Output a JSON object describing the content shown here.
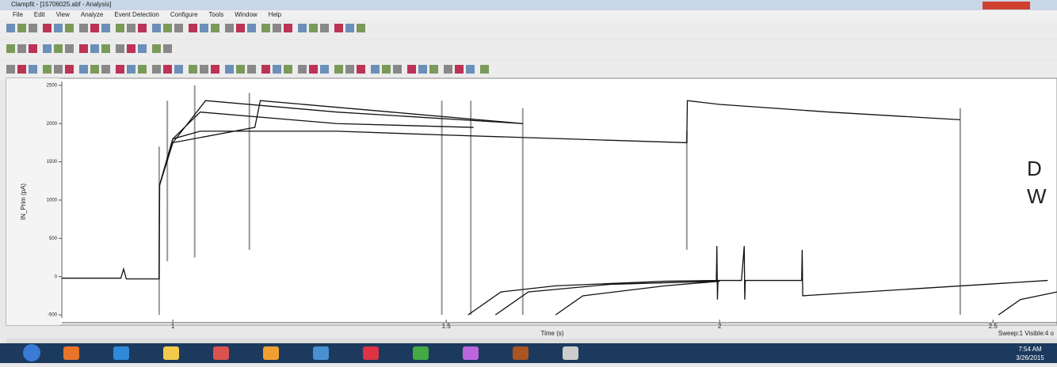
{
  "window": {
    "title": "Clampfit - [15706025.abf - Analysis]",
    "menu": [
      "File",
      "Edit",
      "View",
      "Analyze",
      "Event Detection",
      "Configure",
      "Tools",
      "Window",
      "Help"
    ]
  },
  "chart_data": {
    "type": "line",
    "y_label": "IN_Prim (pA)",
    "x_label": "Time (s)",
    "xlim": [
      0.797,
      2.617
    ],
    "ylim": [
      -540,
      2550
    ],
    "xticks": [
      1,
      1.5,
      2,
      2.5
    ],
    "yticks": [
      2500,
      2000,
      1500,
      1000,
      500,
      0,
      -500
    ],
    "color": "#111111",
    "series": [
      {
        "x": [
          0.797,
          0.905,
          0.91,
          0.915,
          0.975,
          0.976,
          1.0,
          1.05,
          1.3,
          1.5,
          1.94,
          1.941,
          2.0,
          2.2,
          2.44
        ],
        "values": [
          -20,
          -20,
          100,
          -30,
          -30,
          1200,
          1800,
          1900,
          1900,
          1850,
          1750,
          2300,
          2250,
          2150,
          2050
        ]
      },
      {
        "x": [
          0.976,
          1.0,
          1.05,
          1.3,
          1.55
        ],
        "values": [
          1200,
          1800,
          2150,
          2000,
          1950
        ]
      },
      {
        "x": [
          0.976,
          1.0,
          1.06,
          1.3,
          1.64
        ],
        "values": [
          1200,
          1750,
          2300,
          2150,
          2000
        ]
      },
      {
        "x": [
          0.976,
          1.0,
          1.15,
          1.16,
          1.4,
          1.64
        ],
        "values": [
          1200,
          1750,
          1950,
          2300,
          2150,
          2000
        ]
      },
      {
        "x": [
          1.54,
          1.6,
          1.7,
          1.9,
          1.994,
          1.995,
          1.996,
          1.997,
          2.04,
          2.045,
          2.046,
          2.047,
          2.15,
          2.151,
          2.152,
          2.6
        ],
        "values": [
          -500,
          -200,
          -120,
          -60,
          -50,
          400,
          -300,
          -50,
          -50,
          400,
          -300,
          -50,
          -50,
          350,
          -250,
          -50
        ]
      },
      {
        "x": [
          1.59,
          1.65,
          1.8,
          2.0
        ],
        "values": [
          -500,
          -200,
          -100,
          -60
        ]
      },
      {
        "x": [
          1.7,
          1.75,
          1.9,
          2.0
        ],
        "values": [
          -500,
          -250,
          -120,
          -60
        ]
      },
      {
        "x": [
          2.51,
          2.55,
          2.617
        ],
        "values": [
          -500,
          -300,
          -200
        ]
      }
    ],
    "markers": [
      {
        "x": 0.975,
        "low": -500,
        "high": 1700
      },
      {
        "x": 0.99,
        "low": 200,
        "high": 2300
      },
      {
        "x": 1.04,
        "low": 250,
        "high": 2500
      },
      {
        "x": 1.14,
        "low": 350,
        "high": 2400
      },
      {
        "x": 1.492,
        "low": -500,
        "high": 2300
      },
      {
        "x": 1.545,
        "low": -500,
        "high": 2300
      },
      {
        "x": 1.64,
        "low": -500,
        "high": 2200
      },
      {
        "x": 1.94,
        "low": 350,
        "high": 1900
      },
      {
        "x": 2.44,
        "low": -500,
        "high": 2200
      }
    ]
  },
  "status": {
    "sweep": "Sweep:1 Visible:4 o",
    "clock": "7:54 AM",
    "date": "3/26/2015",
    "edge_text": [
      "D",
      "W"
    ]
  }
}
